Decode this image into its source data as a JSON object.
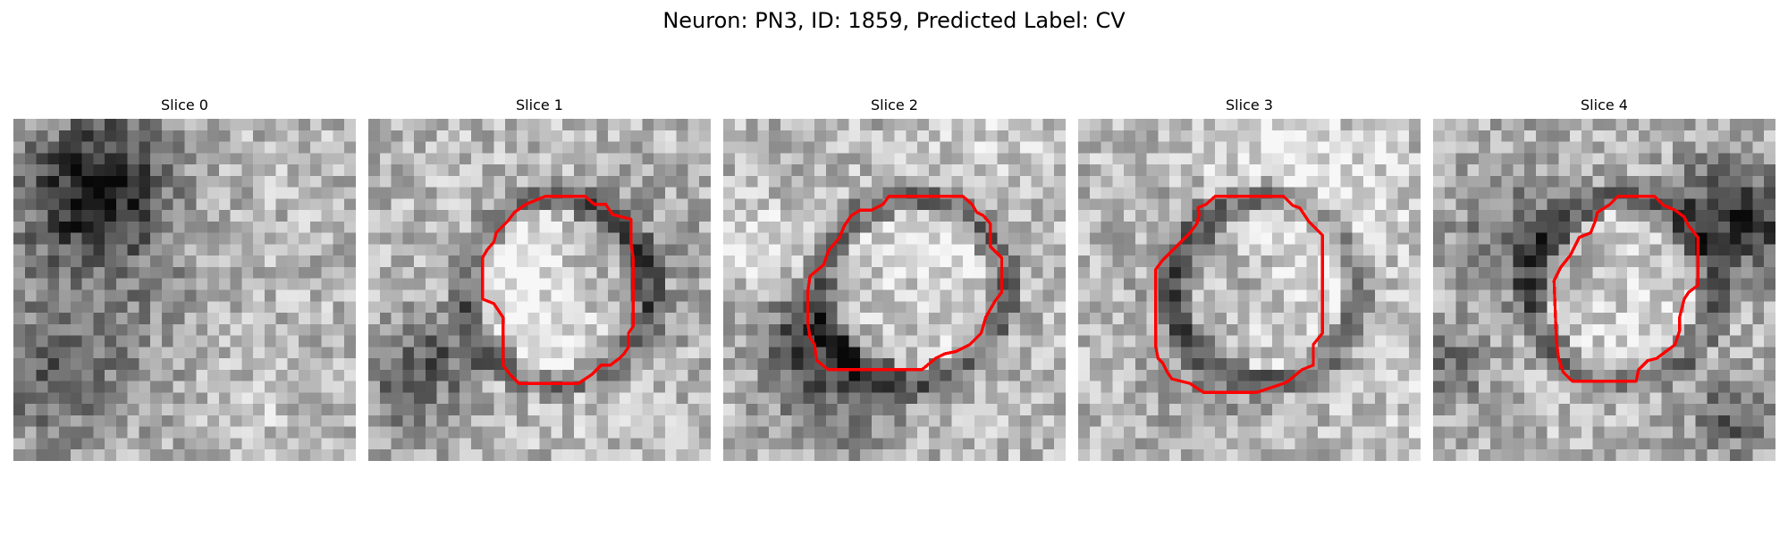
{
  "figure": {
    "title": "Neuron: PN3, ID: 1859, Predicted Label: CV"
  },
  "colors": {
    "contour": "#ff0000",
    "background": "#ffffff"
  },
  "panels": [
    {
      "title": "Slice 0",
      "seed": 11,
      "contour": false,
      "dark_band": 0.45
    },
    {
      "title": "Slice 1",
      "seed": 23,
      "contour": true,
      "dark_band": 0.65
    },
    {
      "title": "Slice 2",
      "seed": 37,
      "contour": true,
      "dark_band": 0.7
    },
    {
      "title": "Slice 3",
      "seed": 51,
      "contour": true,
      "dark_band": 0.7
    },
    {
      "title": "Slice 4",
      "seed": 67,
      "contour": true,
      "dark_band": 0.6
    }
  ]
}
